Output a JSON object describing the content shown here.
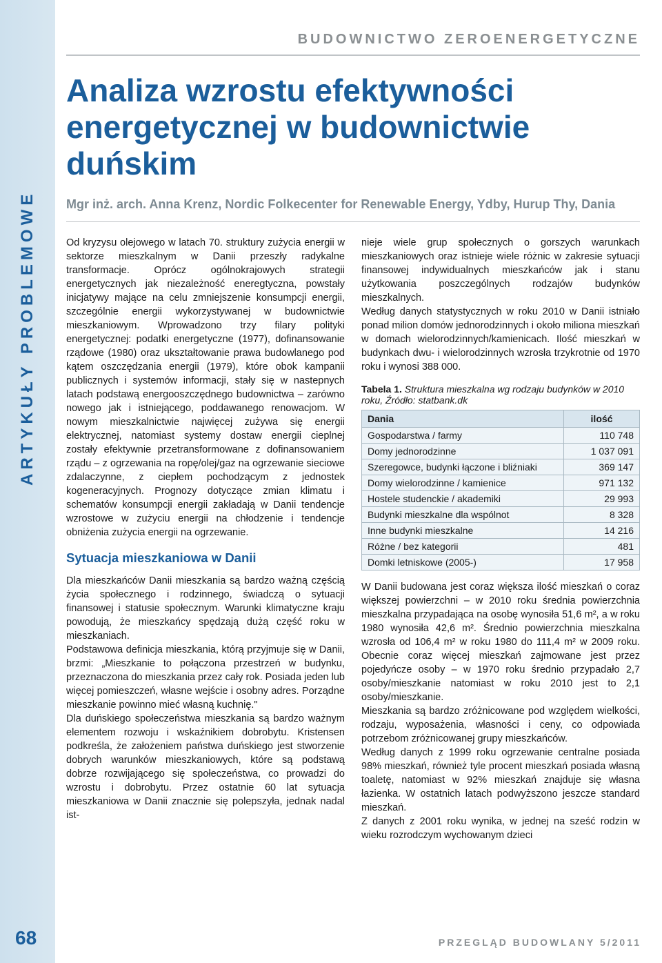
{
  "rubric": "BUDOWNICTWO ZEROENERGETYCZNE",
  "sidebar_label": "ARTYKUŁY PROBLEMOWE",
  "page_number": "68",
  "footer": "PRZEGLĄD BUDOWLANY 5/2011",
  "title": "Analiza wzrostu efektywności energetycznej w budownictwie duńskim",
  "author": "Mgr inż. arch. Anna Krenz, Nordic Folkecenter for Renewable Energy, Ydby, Hurup Thy, Dania",
  "col1": {
    "para1": "Od kryzysu olejowego w latach 70. struktury zużycia energii w sektorze mieszkalnym w Danii przeszły radykalne transformacje. Oprócz ogólnokrajowych strategii energetycznych jak niezależność eneregtyczna, powstały inicjatywy mające na celu zmniejszenie konsumpcji energii, szczególnie energii wykorzystywanej w budownictwie mieszkaniowym. Wprowadzono trzy filary polityki energetycznej: podatki energetyczne (1977), dofinansowanie rządowe (1980) oraz ukształtowanie prawa budowlanego pod kątem oszczędzania energii (1979), które obok kampanii publicznych i systemów informacji, stały się w nastepnych latach podstawą energooszczędnego budownictwa – zarówno nowego jak i istniejącego, poddawanego renowacjom. W nowym mieszkalnictwie najwięcej zużywa się energii elektrycznej, natomiast systemy dostaw energii cieplnej zostały efektywnie przetransformowane z dofinansowaniem rządu – z ogrzewania na ropę/olej/gaz na ogrzewanie sieciowe zdalaczynne, z ciepłem pochodzącym z jednostek kogeneracyjnych. Prognozy dotyczące zmian klimatu i schematów konsumpcji energii zakładają w Danii tendencje wzrostowe w zużyciu energii na chłodzenie i tendencje obniżenia zużycia energii na ogrzewanie.",
    "subhead": "Sytuacja mieszkaniowa w Danii",
    "para2": "Dla mieszkańców Danii mieszkania są bardzo ważną częścią życia społecznego i rodzinnego, świadczą o sytuacji finansowej i statusie społecznym. Warunki klimatyczne kraju powodują, że mieszkańcy spędzają dużą część roku w mieszkaniach.",
    "para3": "Podstawowa definicja mieszkania, którą przyjmuje się w Danii, brzmi: „Mieszkanie to połączona przestrzeń w budynku, przeznaczona do mieszkania przez cały rok. Posiada jeden lub więcej pomieszczeń, własne wejście i osobny adres. Porządne mieszkanie powinno mieć własną kuchnię.\"",
    "para4": "Dla duńskiego społeczeństwa mieszkania są bardzo ważnym elementem rozwoju i wskaźnikiem dobrobytu. Kristensen podkreśla, że założeniem państwa duńskiego jest stworzenie dobrych warunków mieszkaniowych, które są podstawą dobrze rozwijającego się społeczeństwa, co prowadzi do wzrostu i dobrobytu. Przez ostatnie 60 lat sytuacja mieszkaniowa w Danii znacznie się polepszyła, jednak nadal ist-"
  },
  "col2": {
    "para1": "nieje wiele grup społecznych o gorszych warunkach mieszkaniowych oraz istnieje wiele różnic w zakresie sytuacji finansowej indywidualnych mieszkańców jak i stanu użytkowania poszczególnych rodzajów budynków mieszkalnych.",
    "para2": "Według danych statystycznych w roku 2010 w Danii istniało ponad milion domów jednorodzinnych i około miliona mieszkań w domach wielorodzinnych/kamienicach. Ilość mieszkań w budynkach dwu- i wielorodzinnych wzrosła trzykrotnie od 1970 roku i wynosi 388 000.",
    "table_caption_bold": "Tabela 1.",
    "table_caption_italic": "Struktura mieszkalna wg rodzaju budynków w 2010 roku, Źródło: statbank.dk",
    "table": {
      "header_country": "Dania",
      "header_qty": "ilość",
      "rows": [
        {
          "label": "Gospodarstwa / farmy",
          "qty": "110 748"
        },
        {
          "label": "Domy jednorodzinne",
          "qty": "1 037 091"
        },
        {
          "label": "Szeregowce, budynki łączone i bliźniaki",
          "qty": "369 147"
        },
        {
          "label": "Domy wielorodzinne / kamienice",
          "qty": "971 132"
        },
        {
          "label": "Hostele studenckie / akademiki",
          "qty": "29 993"
        },
        {
          "label": "Budynki mieszkalne dla wspólnot",
          "qty": "8 328"
        },
        {
          "label": "Inne budynki mieszkalne",
          "qty": "14 216"
        },
        {
          "label": "Różne / bez kategorii",
          "qty": "481"
        },
        {
          "label": "Domki letniskowe (2005-)",
          "qty": "17 958"
        }
      ]
    },
    "para3": "W Danii budowana jest coraz większa ilość mieszkań o coraz większej powierzchni – w 2010 roku średnia powierzchnia mieszkalna przypadająca na osobę wynosiła 51,6 m², a w roku 1980 wynosiła 42,6 m². Średnio powierzchnia mieszkalna wzrosła od 106,4 m² w roku 1980 do 111,4 m² w 2009 roku. Obecnie coraz więcej mieszkań zajmowane jest przez pojedyńcze osoby – w 1970 roku średnio przypadało 2,7 osoby/mieszkanie natomiast w roku 2010 jest to 2,1 osoby/mieszkanie.",
    "para4": "Mieszkania są bardzo zróżnicowane pod względem wielkości, rodzaju, wyposażenia, własności i ceny, co odpowiada potrzebom zróżnicowanej grupy mieszkańców.",
    "para5": "Według danych z 1999 roku ogrzewanie centralne posiada 98% mieszkań, również tyle procent mieszkań posiada własną toaletę, natomiast w 92% mieszkań znajduje się własna łazienka. W ostatnich latach podwyższono jeszcze standard mieszkań.",
    "para6": "Z danych z 2001 roku wynika, w jednej na sześć rodzin w wieku rozrodczym wychowanym dzieci"
  },
  "colors": {
    "accent_blue": "#1b5e9b",
    "sidebar_bg": "#cde0ed",
    "rubric_gray": "#8a8f92",
    "table_header_bg": "#d8e5ee",
    "table_row_bg": "#eef4f8",
    "table_border": "#a8b8c2"
  }
}
